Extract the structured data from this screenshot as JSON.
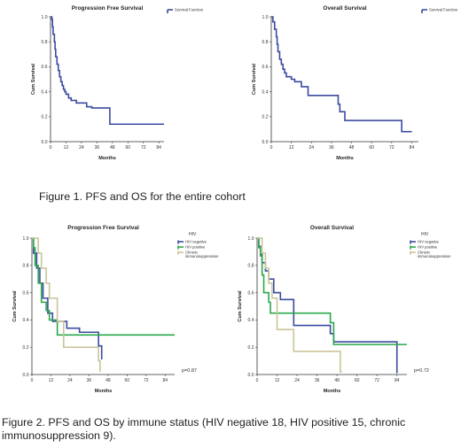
{
  "captions": {
    "figure1": "Figure 1. PFS and OS for the entire cohort",
    "figure2": "Figure 2. PFS and OS by immune status (HIV negative 18, HIV positive 15, chronic immunosuppression 9)."
  },
  "chart_data": [
    {
      "type": "line",
      "step": true,
      "title": "Progression Free Survival",
      "xlabel": "Months",
      "ylabel": "Cum Survival",
      "xticks": [
        0,
        12,
        24,
        36,
        48,
        60,
        72,
        84
      ],
      "yticks": [
        0.0,
        0.2,
        0.4,
        0.6,
        0.8,
        1.0
      ],
      "xlim": [
        0,
        88
      ],
      "ylim": [
        0,
        1.0
      ],
      "legend_position": "top-right",
      "series": [
        {
          "name": "Survival Function",
          "color": "#3b4ba0",
          "x": [
            0,
            1,
            1.5,
            2,
            3,
            3.5,
            4,
            5,
            6,
            7,
            8,
            9,
            10,
            11,
            12,
            14,
            16,
            20,
            28,
            32,
            46,
            88
          ],
          "y": [
            1.0,
            0.98,
            0.92,
            0.86,
            0.8,
            0.74,
            0.68,
            0.62,
            0.57,
            0.52,
            0.48,
            0.45,
            0.42,
            0.4,
            0.38,
            0.35,
            0.33,
            0.31,
            0.28,
            0.27,
            0.14,
            0.14
          ]
        }
      ]
    },
    {
      "type": "line",
      "step": true,
      "title": "Overall Survival",
      "xlabel": "Months",
      "ylabel": "Cum Survival",
      "xticks": [
        0,
        12,
        24,
        36,
        48,
        60,
        72,
        84
      ],
      "yticks": [
        0.0,
        0.2,
        0.4,
        0.6,
        0.8,
        1.0
      ],
      "xlim": [
        0,
        88
      ],
      "ylim": [
        0,
        1.0
      ],
      "legend_position": "top-right",
      "series": [
        {
          "name": "Survival Function",
          "color": "#3b4ba0",
          "x": [
            0,
            1,
            2,
            3,
            3.5,
            4,
            5,
            6,
            7,
            8,
            9,
            12,
            14,
            18,
            22,
            40,
            41,
            44,
            78,
            84
          ],
          "y": [
            1.0,
            0.96,
            0.9,
            0.84,
            0.78,
            0.72,
            0.66,
            0.62,
            0.58,
            0.55,
            0.52,
            0.5,
            0.48,
            0.44,
            0.37,
            0.3,
            0.24,
            0.17,
            0.08,
            0.08
          ]
        }
      ]
    },
    {
      "type": "line",
      "step": true,
      "title": "Progression Free Survival",
      "xlabel": "Months",
      "ylabel": "Cum Survival",
      "legend_title": "HIV",
      "annotation": "p=0.87",
      "xticks": [
        0,
        12,
        24,
        36,
        48,
        60,
        72,
        84
      ],
      "yticks": [
        0.0,
        0.2,
        0.4,
        0.6,
        0.8,
        1.0
      ],
      "xlim": [
        0,
        90
      ],
      "ylim": [
        0,
        1.0
      ],
      "legend_position": "top-right",
      "series": [
        {
          "name": "HIV negative",
          "color": "#3b4ba0",
          "x": [
            0,
            1,
            3,
            5,
            7,
            10,
            13,
            22,
            30,
            42,
            44
          ],
          "y": [
            1.0,
            0.89,
            0.78,
            0.67,
            0.56,
            0.45,
            0.39,
            0.34,
            0.31,
            0.21,
            0.11
          ]
        },
        {
          "name": "HIV positive",
          "color": "#2aa84a",
          "x": [
            0,
            1,
            2,
            4,
            6,
            9,
            11,
            16,
            90
          ],
          "y": [
            1.0,
            0.93,
            0.8,
            0.67,
            0.53,
            0.47,
            0.4,
            0.29,
            0.29
          ]
        },
        {
          "name": "Chronic immunosuppression",
          "color": "#c9c59a",
          "x": [
            0,
            3,
            4,
            6,
            9,
            11,
            16,
            20,
            42,
            43
          ],
          "y": [
            1.0,
            1.0,
            0.89,
            0.78,
            0.67,
            0.56,
            0.39,
            0.2,
            0.1,
            0.02
          ]
        }
      ]
    },
    {
      "type": "line",
      "step": true,
      "title": "Overall Survival",
      "xlabel": "Months",
      "ylabel": "Cum Survival",
      "legend_title": "HIV",
      "annotation": "p=0.72",
      "xticks": [
        0,
        12,
        24,
        36,
        48,
        60,
        72,
        84
      ],
      "yticks": [
        0.0,
        0.2,
        0.4,
        0.6,
        0.8,
        1.0
      ],
      "xlim": [
        0,
        90
      ],
      "ylim": [
        0,
        1.0
      ],
      "legend_position": "top-right",
      "series": [
        {
          "name": "HIV negative",
          "color": "#3b4ba0",
          "x": [
            0,
            1,
            2,
            3,
            5,
            7,
            10,
            14,
            22,
            44,
            46,
            83,
            84
          ],
          "y": [
            1.0,
            0.94,
            0.88,
            0.82,
            0.76,
            0.7,
            0.6,
            0.55,
            0.36,
            0.3,
            0.24,
            0.24,
            0.01
          ]
        },
        {
          "name": "HIV positive",
          "color": "#2aa84a",
          "x": [
            0,
            1,
            2,
            3,
            4,
            7,
            8,
            14,
            44,
            46,
            90
          ],
          "y": [
            1.0,
            0.93,
            0.87,
            0.73,
            0.6,
            0.53,
            0.45,
            0.45,
            0.38,
            0.22,
            0.22
          ]
        },
        {
          "name": "Chronic immunosuppression",
          "color": "#c9c59a",
          "x": [
            0,
            2,
            3,
            5,
            7,
            9,
            12,
            22,
            34,
            50,
            51
          ],
          "y": [
            1.0,
            1.0,
            0.89,
            0.78,
            0.67,
            0.56,
            0.33,
            0.17,
            0.17,
            0.02,
            0.02
          ]
        }
      ]
    }
  ]
}
